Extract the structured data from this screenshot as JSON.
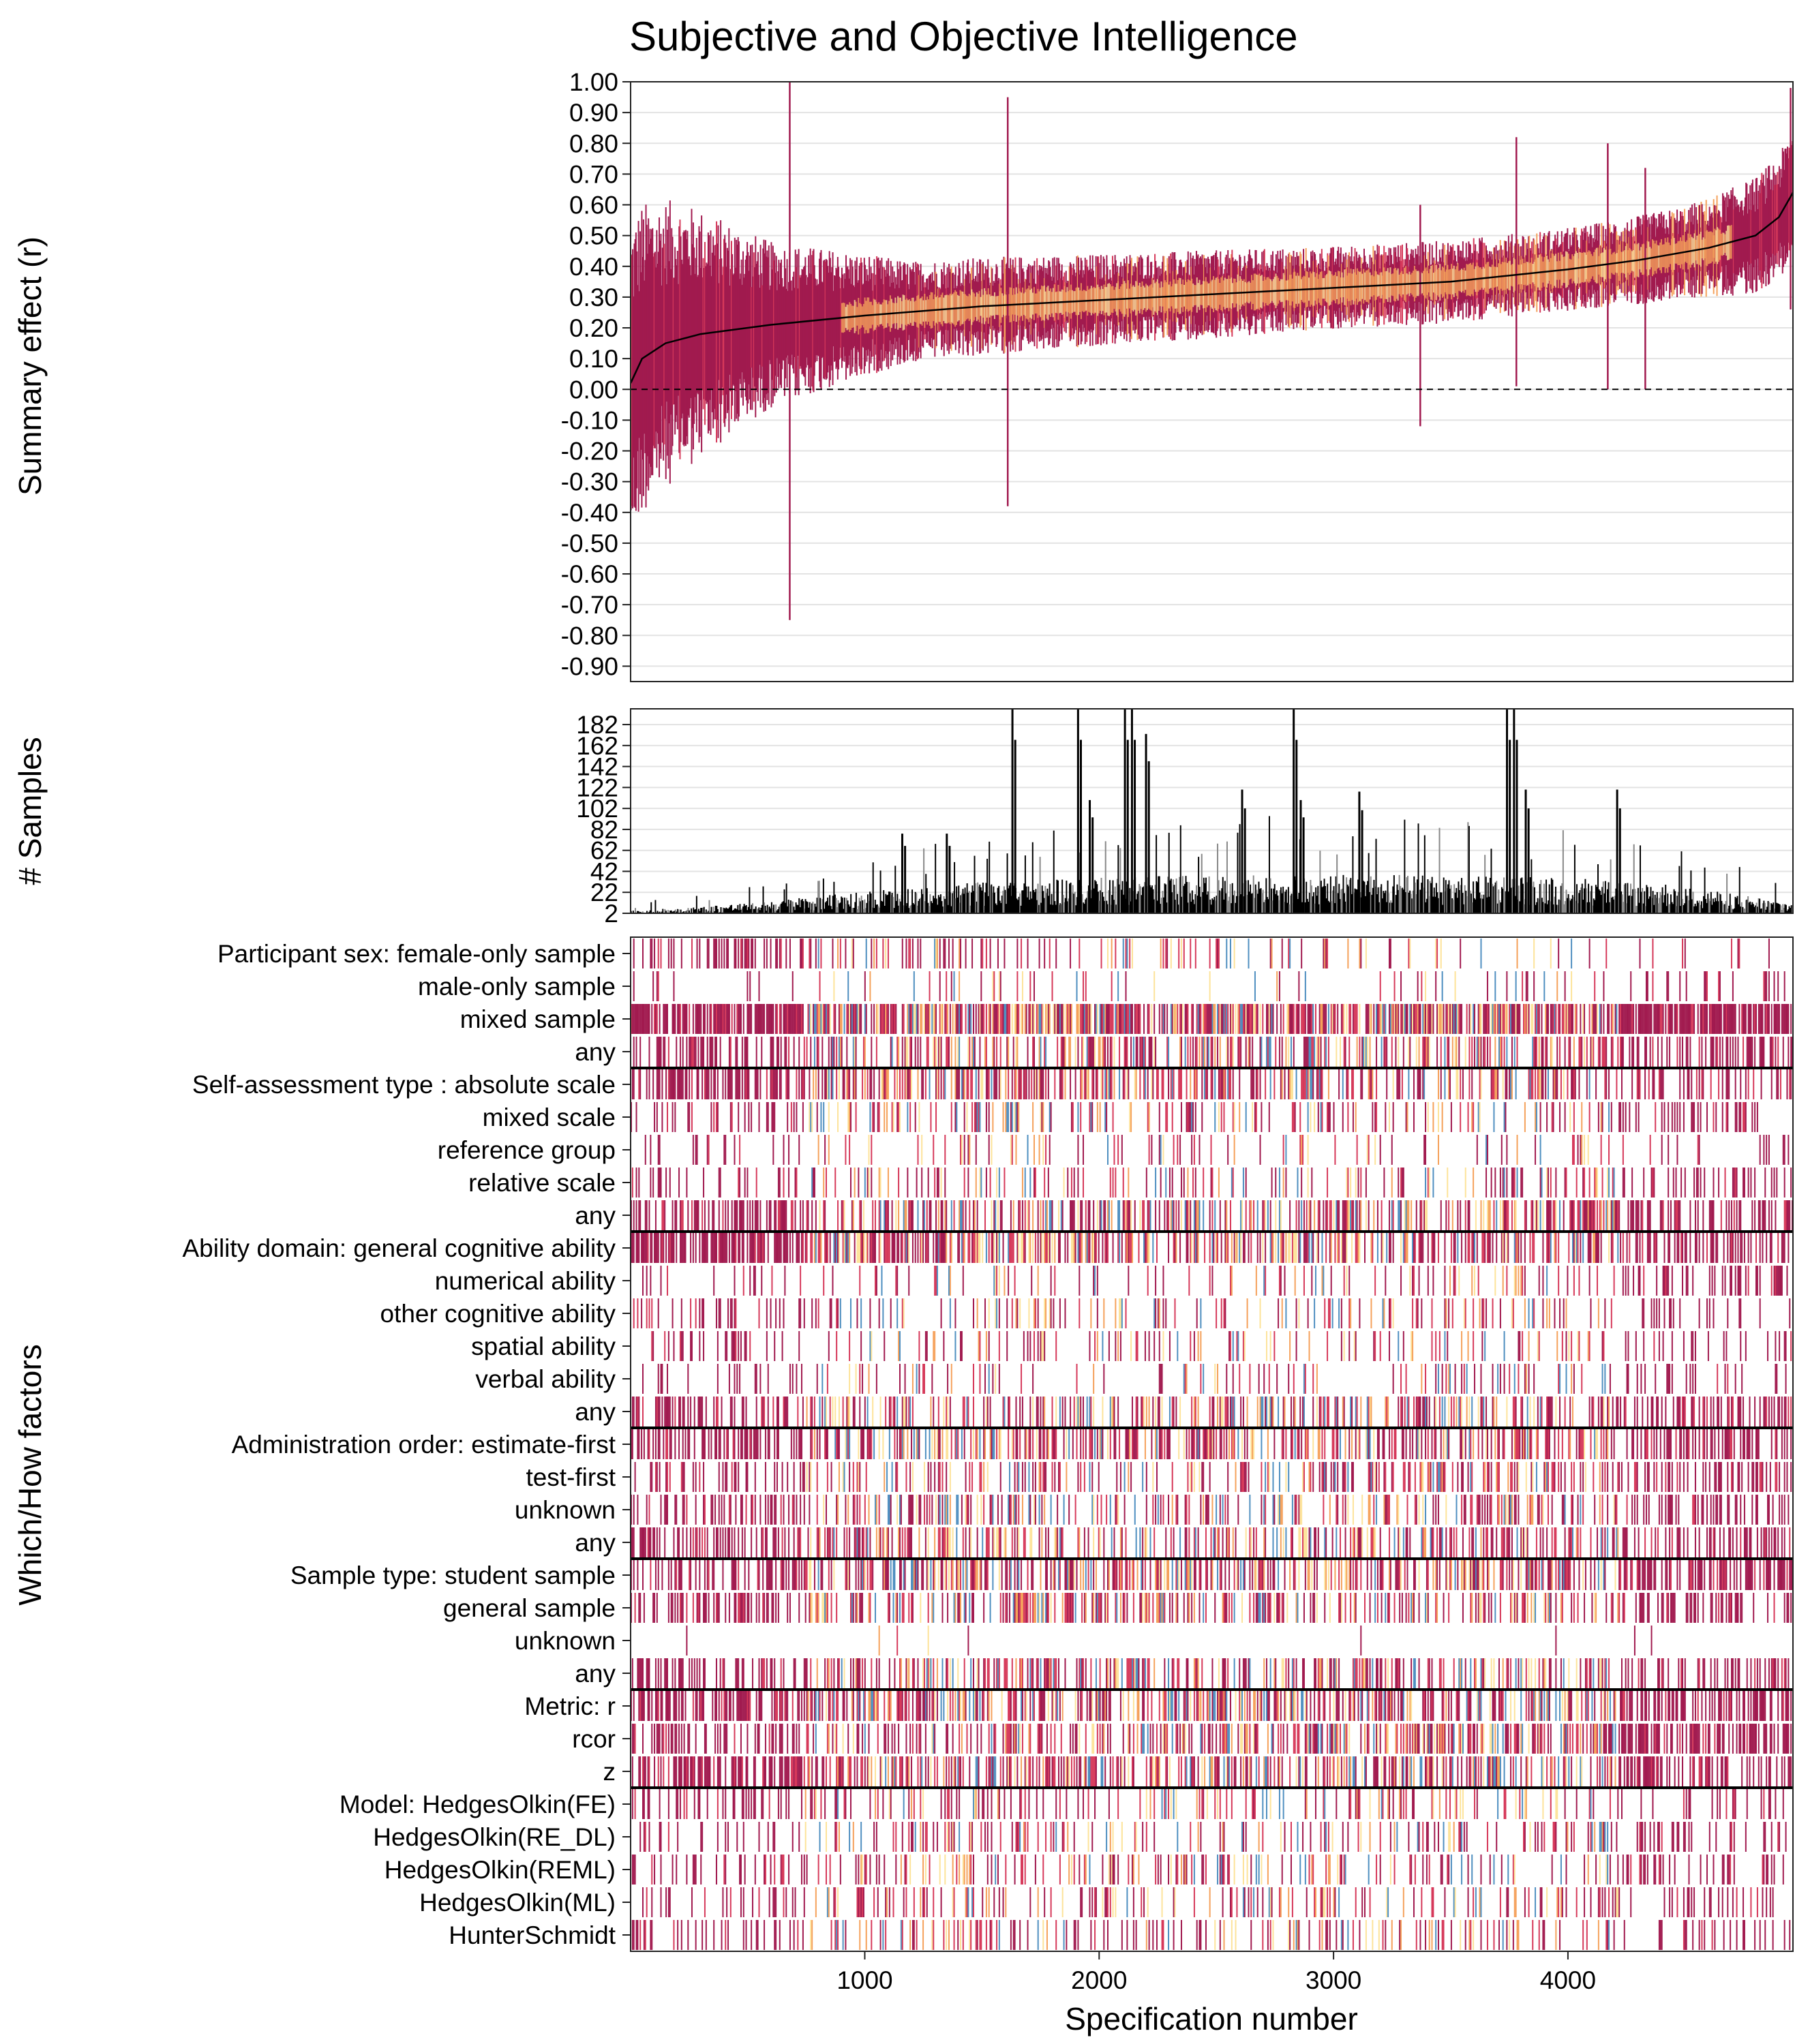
{
  "chart_data": {
    "type": "specification-curve",
    "title": "Subjective and Objective Intelligence",
    "xlabel": "Specification number",
    "x_range": [
      1,
      4960
    ],
    "x_ticks": [
      1000,
      2000,
      3000,
      4000
    ],
    "colors": {
      "interval_dark": "#a11a4f",
      "interval_mid": "#d6395a",
      "interval_light": "#f5a15b",
      "interval_pale": "#fde39a",
      "interval_blue": "#4f8fc0",
      "median_curve": "#000000",
      "sample_bars": "#000000",
      "sample_bars_grey": "#888888"
    },
    "summary_panel": {
      "ylabel": "Summary effect (r)",
      "ylim": [
        -0.95,
        1.0
      ],
      "y_ticks": [
        "1.00",
        "0.90",
        "0.80",
        "0.70",
        "0.60",
        "0.50",
        "0.40",
        "0.30",
        "0.20",
        "0.10",
        "0.00",
        "-0.10",
        "-0.20",
        "-0.30",
        "-0.40",
        "-0.50",
        "-0.60",
        "-0.70",
        "-0.80",
        "-0.90"
      ],
      "reference_line": 0.0,
      "median_curve": {
        "x": [
          1,
          50,
          150,
          300,
          600,
          1000,
          1500,
          2000,
          2500,
          3000,
          3500,
          4000,
          4300,
          4600,
          4800,
          4900,
          4960
        ],
        "r": [
          0.02,
          0.1,
          0.15,
          0.18,
          0.21,
          0.24,
          0.27,
          0.29,
          0.31,
          0.33,
          0.35,
          0.39,
          0.42,
          0.46,
          0.5,
          0.56,
          0.64
        ]
      },
      "interval_halfwidth": {
        "x": [
          1,
          200,
          600,
          1200,
          2000,
          3000,
          4000,
          4500,
          4960
        ],
        "hw": [
          0.35,
          0.3,
          0.18,
          0.11,
          0.1,
          0.09,
          0.09,
          0.1,
          0.14
        ]
      },
      "notable_spikes": [
        {
          "x": 680,
          "low": -0.75,
          "high": 1.0
        },
        {
          "x": 1610,
          "low": -0.38,
          "high": 0.95
        },
        {
          "x": 3370,
          "low": -0.12,
          "high": 0.6
        },
        {
          "x": 3780,
          "low": 0.01,
          "high": 0.82
        },
        {
          "x": 4170,
          "low": 0.0,
          "high": 0.8
        },
        {
          "x": 4330,
          "low": 0.0,
          "high": 0.72
        },
        {
          "x": 4950,
          "low": 0.26,
          "high": 0.98
        }
      ]
    },
    "samples_panel": {
      "ylabel": "# Samples",
      "ylim": [
        2,
        197
      ],
      "y_ticks": [
        "182",
        "162",
        "142",
        "122",
        "102",
        "82",
        "62",
        "42",
        "22",
        "2"
      ],
      "baseline_profile": {
        "x": [
          1,
          500,
          1000,
          1500,
          2000,
          2500,
          3000,
          3500,
          4000,
          4500,
          4960
        ],
        "k": [
          4,
          10,
          20,
          28,
          32,
          34,
          35,
          33,
          32,
          25,
          10
        ]
      },
      "peaks": [
        {
          "x": 1630,
          "k": 197
        },
        {
          "x": 1910,
          "k": 197
        },
        {
          "x": 2110,
          "k": 197
        },
        {
          "x": 2140,
          "k": 197
        },
        {
          "x": 2200,
          "k": 173
        },
        {
          "x": 1960,
          "k": 110
        },
        {
          "x": 2830,
          "k": 197
        },
        {
          "x": 2860,
          "k": 110
        },
        {
          "x": 3740,
          "k": 197
        },
        {
          "x": 3770,
          "k": 197
        },
        {
          "x": 3820,
          "k": 120
        },
        {
          "x": 3110,
          "k": 118
        },
        {
          "x": 4210,
          "k": 120
        },
        {
          "x": 2610,
          "k": 120
        },
        {
          "x": 1350,
          "k": 78
        },
        {
          "x": 1160,
          "k": 78
        }
      ]
    },
    "factors_panel": {
      "ylabel": "Which/How factors",
      "groups": [
        {
          "name": "Participant sex",
          "levels": [
            {
              "label": "Participant sex: female-only sample",
              "density": 0.18,
              "bias": -0.6
            },
            {
              "label": "male-only sample",
              "density": 0.08,
              "bias": 0.2
            },
            {
              "label": "mixed sample",
              "density": 0.75,
              "bias": 0.0
            },
            {
              "label": "any",
              "density": 0.42,
              "bias": 0.0
            }
          ]
        },
        {
          "name": "Self-assessment type",
          "levels": [
            {
              "label": "Self-assessment type : absolute scale",
              "density": 0.45,
              "bias": -0.3
            },
            {
              "label": "mixed scale",
              "density": 0.25,
              "bias": -0.2
            },
            {
              "label": "reference group",
              "density": 0.12,
              "bias": 0.1
            },
            {
              "label": "relative scale",
              "density": 0.22,
              "bias": 0.1
            },
            {
              "label": "any",
              "density": 0.42,
              "bias": 0.0
            }
          ]
        },
        {
          "name": "Ability domain",
          "levels": [
            {
              "label": "Ability domain: general cognitive ability",
              "density": 0.55,
              "bias": -0.2
            },
            {
              "label": "numerical ability",
              "density": 0.14,
              "bias": 0.7
            },
            {
              "label": "other cognitive ability",
              "density": 0.2,
              "bias": -0.2
            },
            {
              "label": "spatial ability",
              "density": 0.18,
              "bias": 0.0
            },
            {
              "label": "verbal ability",
              "density": 0.16,
              "bias": 0.2
            },
            {
              "label": "any",
              "density": 0.4,
              "bias": 0.0
            }
          ]
        },
        {
          "name": "Administration order",
          "levels": [
            {
              "label": "Administration order: estimate-first",
              "density": 0.45,
              "bias": 0.0
            },
            {
              "label": "test-first",
              "density": 0.3,
              "bias": 0.1
            },
            {
              "label": "unknown",
              "density": 0.3,
              "bias": 0.0
            },
            {
              "label": "any",
              "density": 0.42,
              "bias": 0.0
            }
          ]
        },
        {
          "name": "Sample type",
          "levels": [
            {
              "label": "Sample type: student sample",
              "density": 0.48,
              "bias": 0.2
            },
            {
              "label": "general sample",
              "density": 0.38,
              "bias": -0.2
            },
            {
              "label": "unknown",
              "density": 0.01,
              "bias": 0.0
            },
            {
              "label": "any",
              "density": 0.42,
              "bias": 0.0
            }
          ]
        },
        {
          "name": "Metric",
          "levels": [
            {
              "label": "Metric: r",
              "density": 0.5,
              "bias": -0.1
            },
            {
              "label": "rcor",
              "density": 0.45,
              "bias": 0.3
            },
            {
              "label": "z",
              "density": 0.45,
              "bias": -0.1
            }
          ]
        },
        {
          "name": "Model",
          "levels": [
            {
              "label": "Model: HedgesOlkin(FE)",
              "density": 0.22,
              "bias": 0.0
            },
            {
              "label": "HedgesOlkin(RE_DL)",
              "density": 0.22,
              "bias": 0.0
            },
            {
              "label": "HedgesOlkin(REML)",
              "density": 0.22,
              "bias": 0.0
            },
            {
              "label": "HedgesOlkin(ML)",
              "density": 0.22,
              "bias": 0.0
            },
            {
              "label": "HunterSchmidt",
              "density": 0.22,
              "bias": 0.0
            }
          ]
        }
      ]
    }
  }
}
